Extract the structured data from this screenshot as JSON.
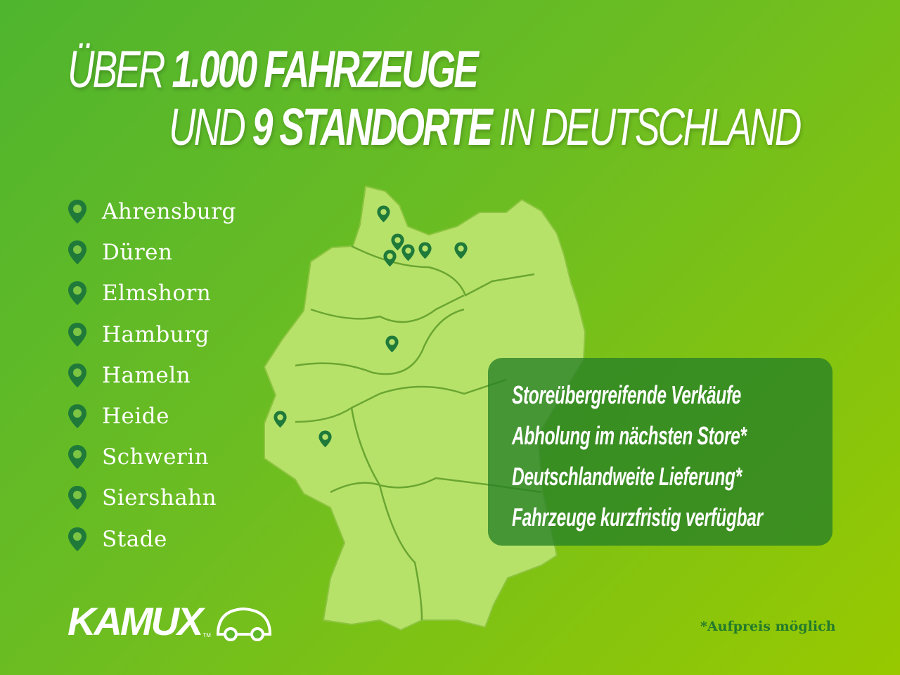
{
  "headline": {
    "line1_a": "ÜBER",
    "line1_b": "1.000 FAHRZEUGE",
    "line2_a": "UND",
    "line2_b": "9 STANDORTE",
    "line2_c": "IN DEUTSCHLAND"
  },
  "locations": [
    "Ahrensburg",
    "Düren",
    "Elmshorn",
    "Hamburg",
    "Hameln",
    "Heide",
    "Schwerin",
    "Siershahn",
    "Stade"
  ],
  "features": [
    "Storeübergreifende Verkäufe",
    "Abholung im nächsten Store*",
    "Deutschlandweite Lieferung*",
    "Fahrzeuge kurzfristig verfügbar"
  ],
  "footnote": "*Aufpreis möglich",
  "brand": {
    "name": "KAMUX",
    "tm": "TM"
  },
  "colors": {
    "pin": "#1f7a3a",
    "map": "#b7e26a",
    "box": "#2e8a2e",
    "accent": "#98c900"
  },
  "icons": {
    "location": "map-pin-icon",
    "feature": "check-icon",
    "logo": "car-icon"
  }
}
